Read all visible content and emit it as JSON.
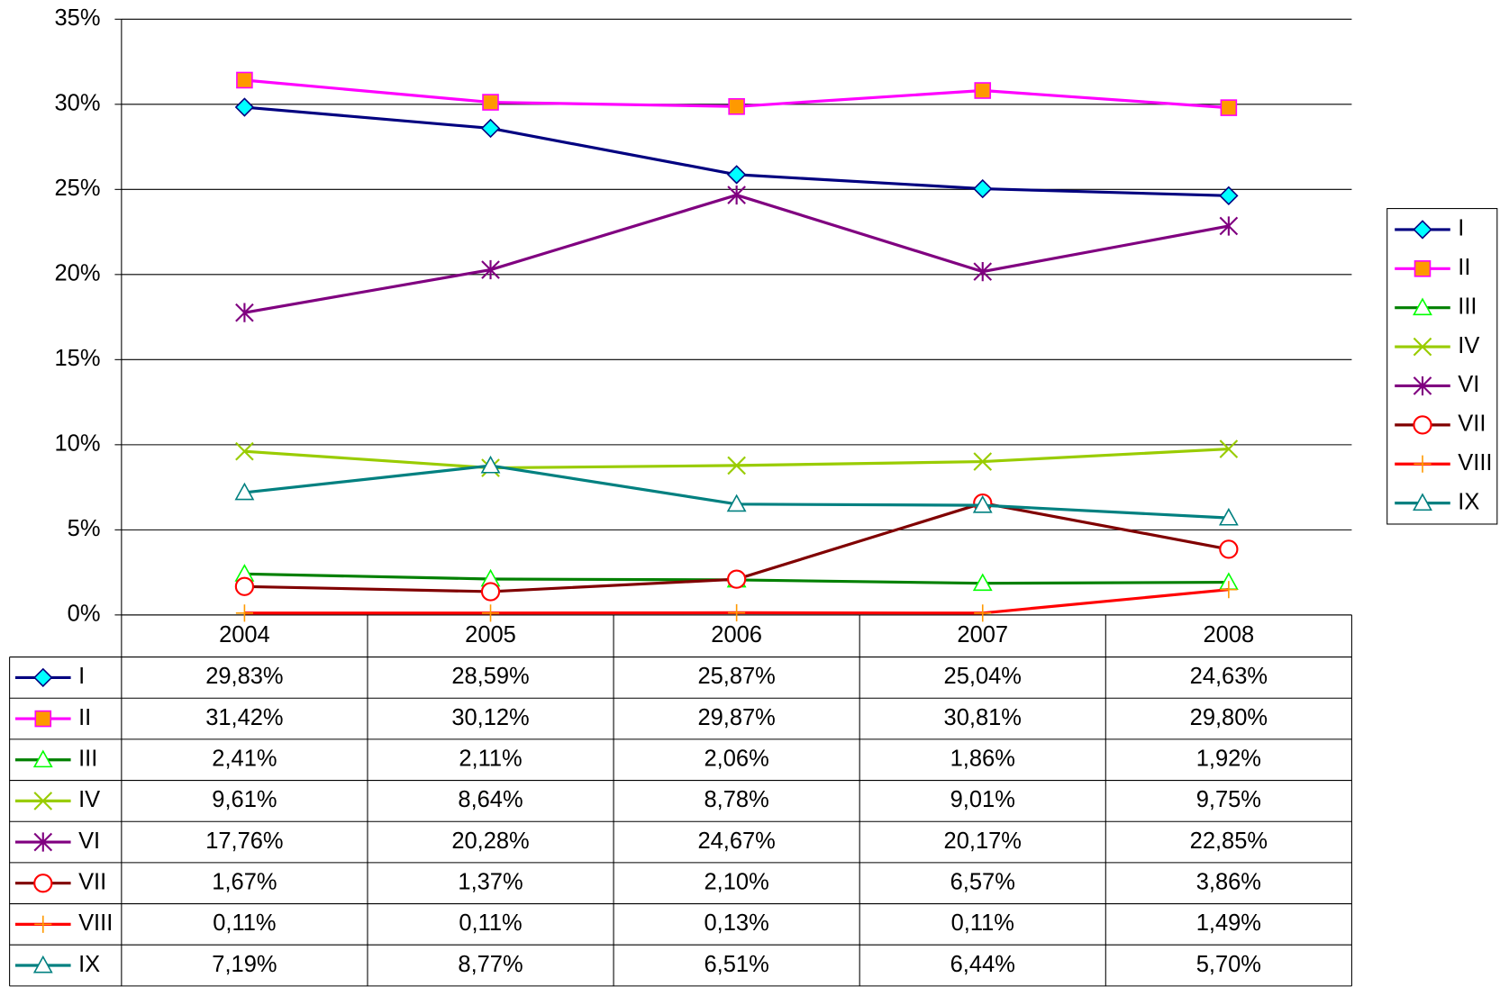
{
  "chart_data": {
    "type": "line",
    "categories": [
      "2004",
      "2005",
      "2006",
      "2007",
      "2008"
    ],
    "ylim": [
      0,
      35
    ],
    "yticks": [
      {
        "value": 0,
        "label": "0%"
      },
      {
        "value": 5,
        "label": "5%"
      },
      {
        "value": 10,
        "label": "10%"
      },
      {
        "value": 15,
        "label": "15%"
      },
      {
        "value": 20,
        "label": "20%"
      },
      {
        "value": 25,
        "label": "25%"
      },
      {
        "value": 30,
        "label": "30%"
      },
      {
        "value": 35,
        "label": "35%"
      }
    ],
    "grid": true,
    "legend": "right",
    "series": [
      {
        "name": "I",
        "color": "#000080",
        "marker": "diamond",
        "marker_color": "#00ffff",
        "values": [
          29.83,
          28.59,
          25.87,
          25.04,
          24.63
        ],
        "value_labels": [
          "29,83%",
          "28,59%",
          "25,87%",
          "25,04%",
          "24,63%"
        ]
      },
      {
        "name": "II",
        "color": "#ff00ff",
        "marker": "square",
        "marker_color": "#ff9900",
        "values": [
          31.42,
          30.12,
          29.87,
          30.81,
          29.8
        ],
        "value_labels": [
          "31,42%",
          "30,12%",
          "29,87%",
          "30,81%",
          "29,80%"
        ]
      },
      {
        "name": "III",
        "color": "#008000",
        "marker": "triangle",
        "marker_color": "#00ff00",
        "values": [
          2.41,
          2.11,
          2.06,
          1.86,
          1.92
        ],
        "value_labels": [
          "2,41%",
          "2,11%",
          "2,06%",
          "1,86%",
          "1,92%"
        ]
      },
      {
        "name": "IV",
        "color": "#99cc00",
        "marker": "x",
        "marker_color": "#99cc00",
        "values": [
          9.61,
          8.64,
          8.78,
          9.01,
          9.75
        ],
        "value_labels": [
          "9,61%",
          "8,64%",
          "8,78%",
          "9,01%",
          "9,75%"
        ]
      },
      {
        "name": "VI",
        "color": "#800080",
        "marker": "asterisk",
        "marker_color": "#800080",
        "values": [
          17.76,
          20.28,
          24.67,
          20.17,
          22.85
        ],
        "value_labels": [
          "17,76%",
          "20,28%",
          "24,67%",
          "20,17%",
          "22,85%"
        ]
      },
      {
        "name": "VII",
        "color": "#800000",
        "marker": "circle",
        "marker_color": "#ff0000",
        "values": [
          1.67,
          1.37,
          2.1,
          6.57,
          3.86
        ],
        "value_labels": [
          "1,67%",
          "1,37%",
          "2,10%",
          "6,57%",
          "3,86%"
        ]
      },
      {
        "name": "VIII",
        "color": "#ff0000",
        "marker": "plus",
        "marker_color": "#ff9900",
        "values": [
          0.11,
          0.11,
          0.13,
          0.11,
          1.49
        ],
        "value_labels": [
          "0,11%",
          "0,11%",
          "0,13%",
          "0,11%",
          "1,49%"
        ]
      },
      {
        "name": "IX",
        "color": "#008080",
        "marker": "triangle",
        "marker_color": "#008080",
        "values": [
          7.19,
          8.77,
          6.51,
          6.44,
          5.7
        ],
        "value_labels": [
          "7,19%",
          "8,77%",
          "6,51%",
          "6,44%",
          "5,70%"
        ]
      }
    ]
  }
}
